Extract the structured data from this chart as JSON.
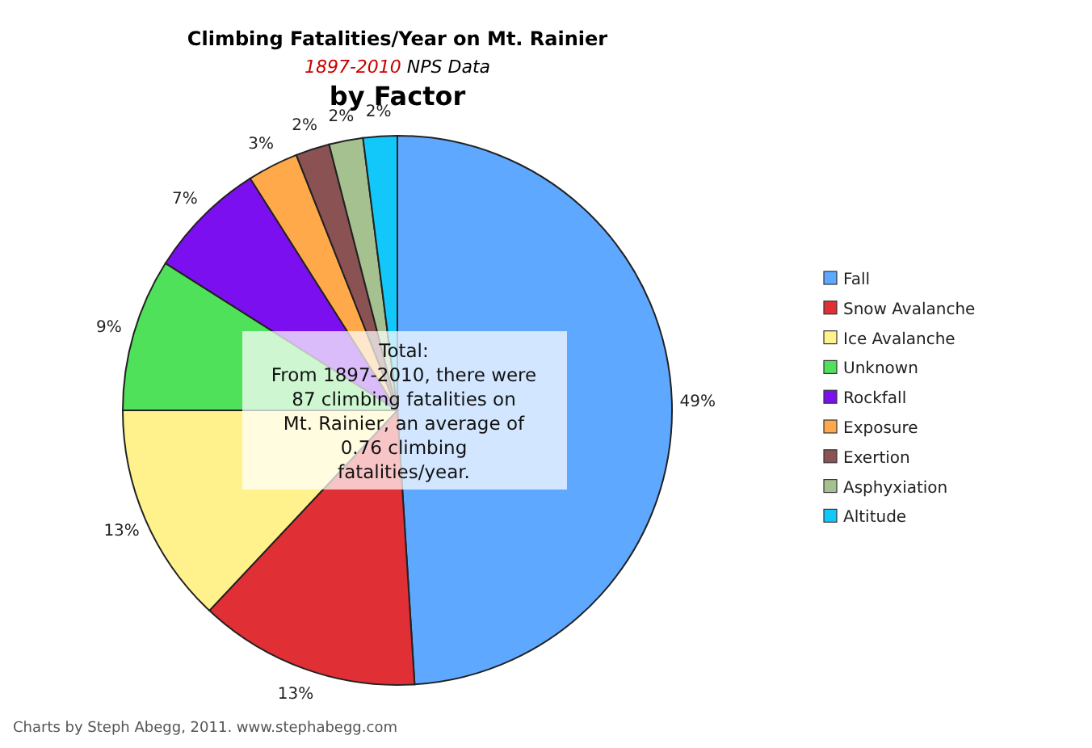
{
  "chart_data": {
    "type": "pie",
    "title": "Climbing Fatalities/Year on Mt. Rainier",
    "subtitle": "1897-2010 NPS Data",
    "xlabel": "by Factor",
    "categories": [
      "Fall",
      "Snow Avalanche",
      "Ice Avalanche",
      "Unknown",
      "Rockfall",
      "Exposure",
      "Exertion",
      "Asphyxiation",
      "Altitude"
    ],
    "values": [
      49,
      13,
      13,
      9,
      7,
      3,
      2,
      2,
      2
    ],
    "value_labels": [
      "49%",
      "13%",
      "13%",
      "9%",
      "7%",
      "3%",
      "2%",
      "2%",
      "2%"
    ],
    "colors": [
      "#5ea8ff",
      "#e02f35",
      "#fff28c",
      "#50e15a",
      "#7b0ff0",
      "#ffa94a",
      "#8a5252",
      "#a5c190",
      "#12c8fb"
    ],
    "legend": "right",
    "annotations": [
      "Total:\nFrom 1897-2010, there were 87 climbing fatalities on Mt. Rainier, an average of 0.76 climbing fatalities/year.",
      "Charts by Steph Abegg, 2011. www.stephabegg.com"
    ]
  }
}
